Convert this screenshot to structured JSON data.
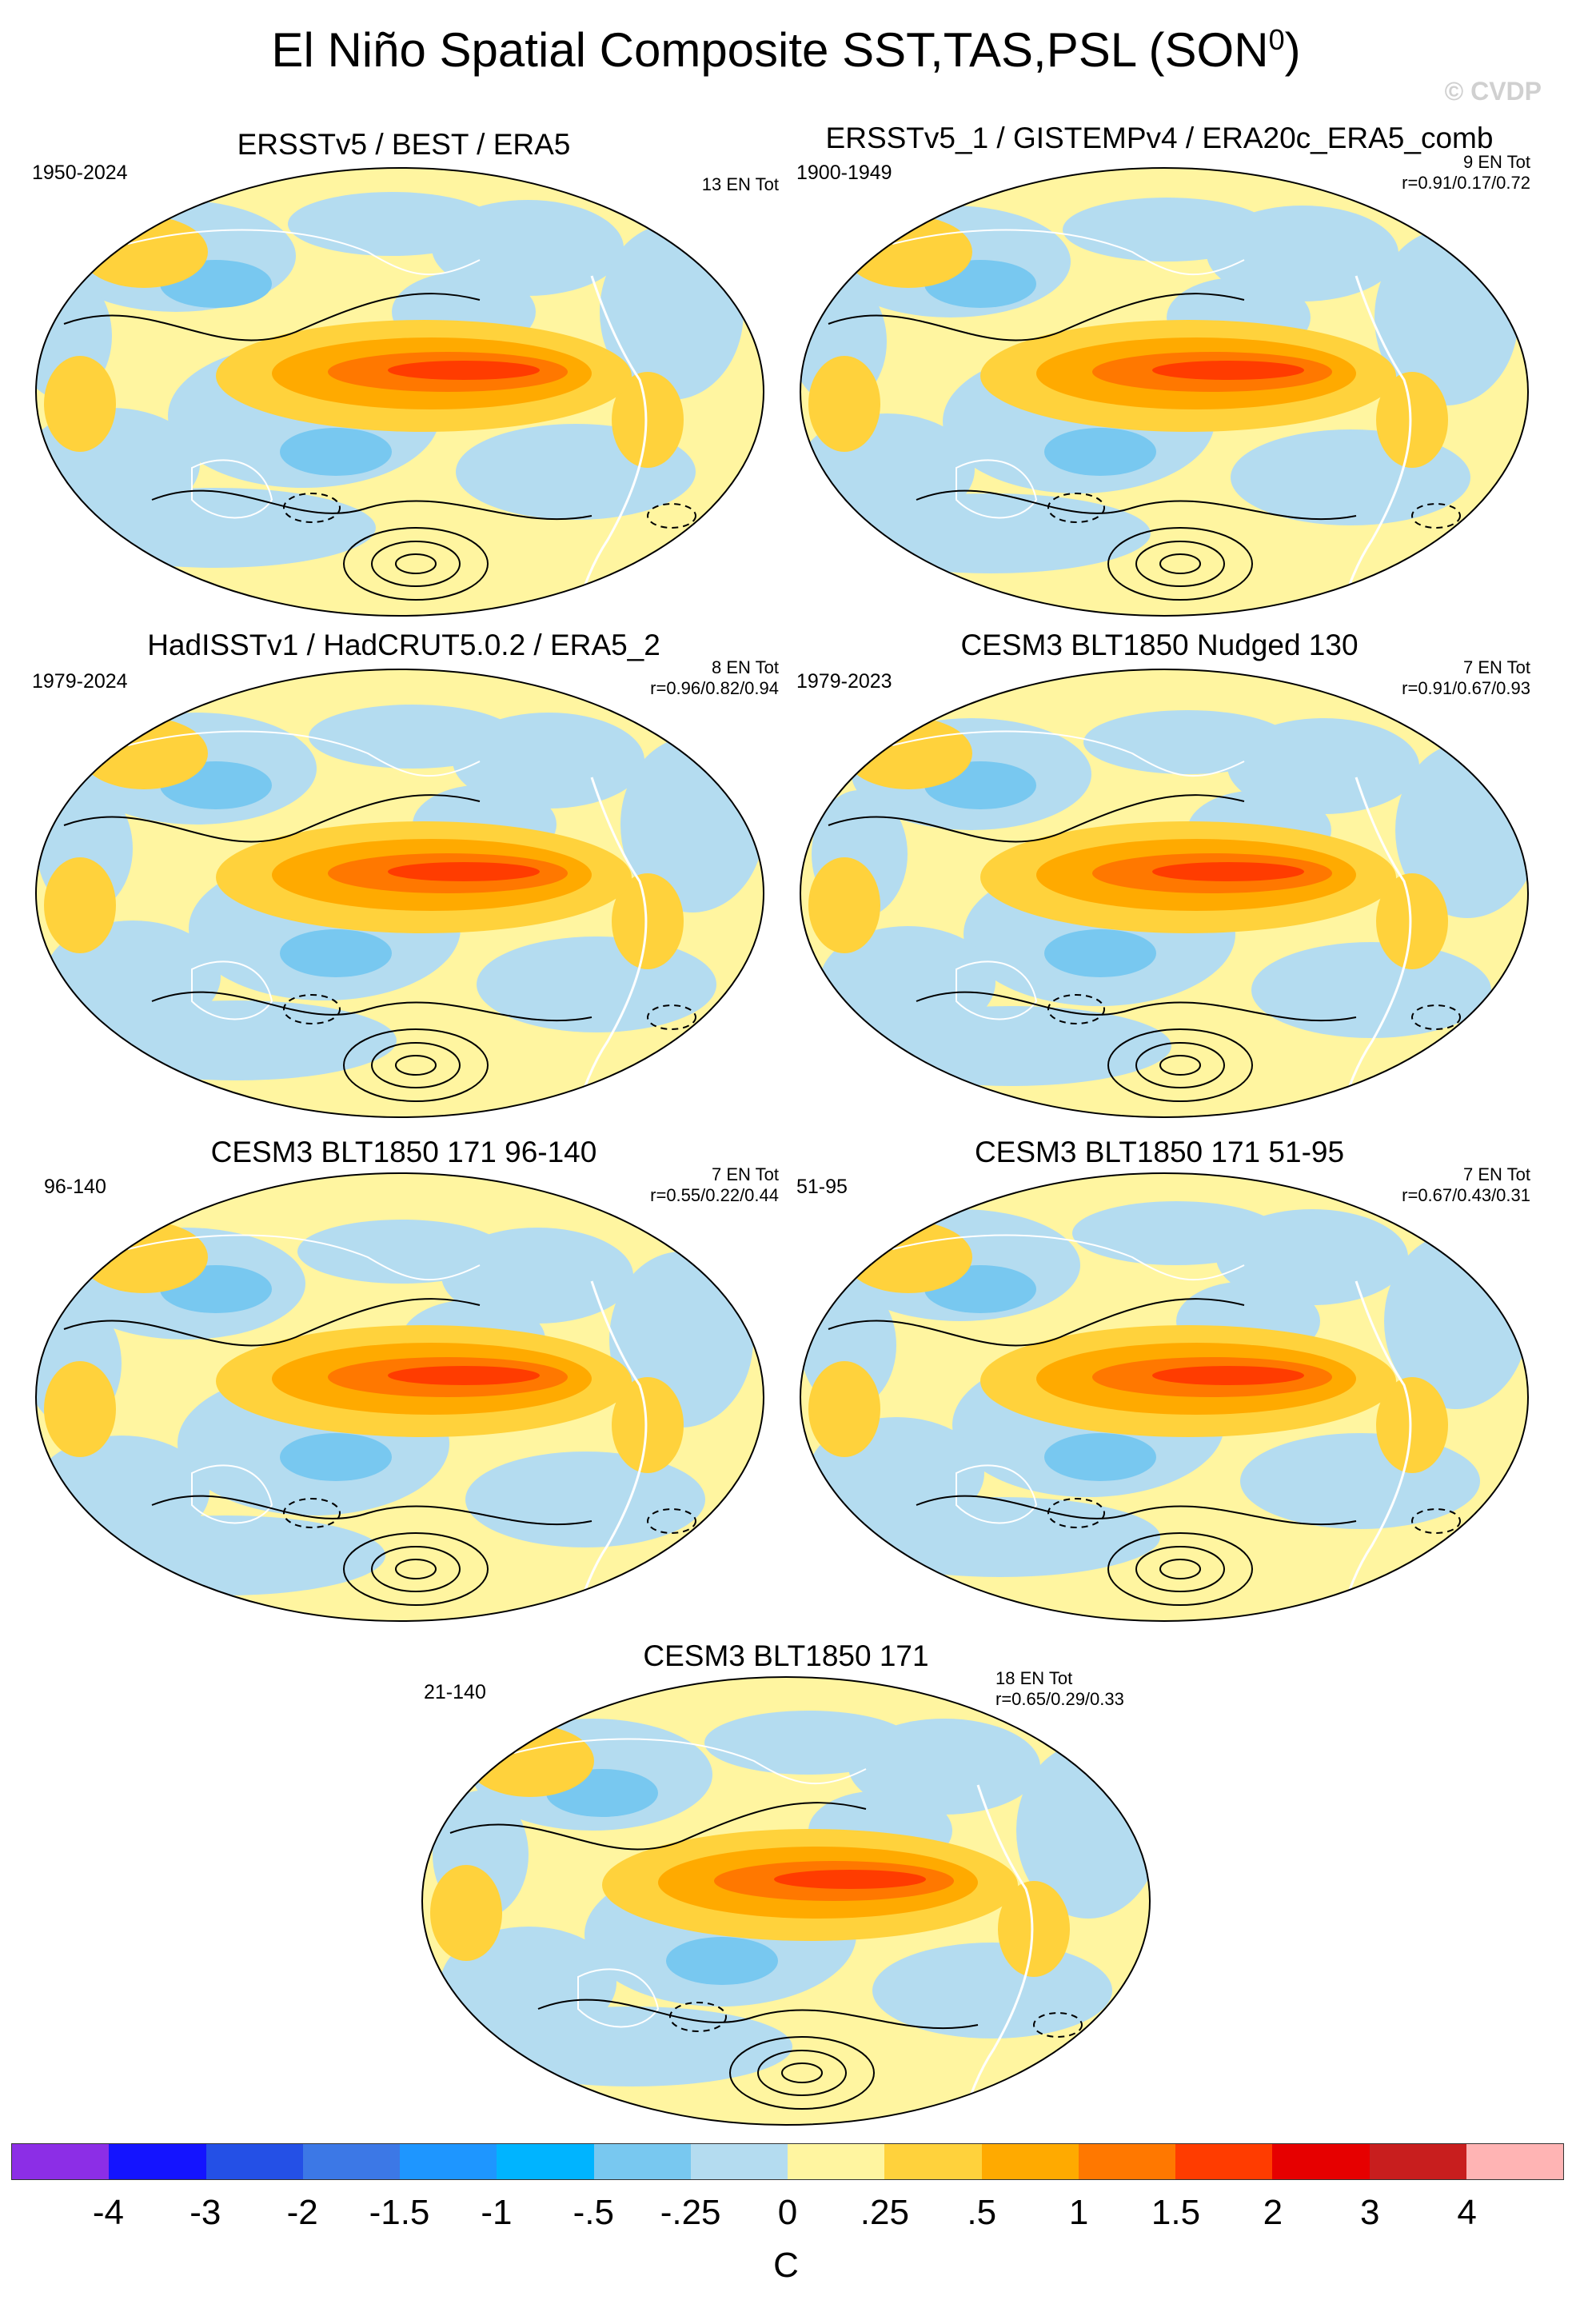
{
  "title": "El Niño Spatial Composite SST,TAS,PSL (SON",
  "title_superscript": "0",
  "title_close": ")",
  "watermark": "© CVDP",
  "panels": [
    {
      "title": "ERSSTv5 / BEST / ERA5",
      "period": "1950-2024",
      "stats_line1": "13 EN Tot",
      "stats_line2": ""
    },
    {
      "title": "ERSSTv5_1 / GISTEMPv4 / ERA20c_ERA5_comb",
      "period": "1900-1949",
      "stats_line1": "9 EN Tot",
      "stats_line2": "r=0.91/0.17/0.72"
    },
    {
      "title": "HadISSTv1 / HadCRUT5.0.2 / ERA5_2",
      "period": "1979-2024",
      "stats_line1": "8 EN Tot",
      "stats_line2": "r=0.96/0.82/0.94"
    },
    {
      "title": "CESM3 BLT1850 Nudged 130",
      "period": "1979-2023",
      "stats_line1": "7 EN Tot",
      "stats_line2": "r=0.91/0.67/0.93"
    },
    {
      "title": "CESM3 BLT1850 171 96-140",
      "period": "96-140",
      "stats_line1": "7 EN Tot",
      "stats_line2": "r=0.55/0.22/0.44"
    },
    {
      "title": "CESM3 BLT1850 171 51-95",
      "period": "51-95",
      "stats_line1": "7 EN Tot",
      "stats_line2": "r=0.67/0.43/0.31"
    },
    {
      "title": "CESM3 BLT1850 171",
      "period": "21-140",
      "stats_line1": "18 EN Tot",
      "stats_line2": "r=0.65/0.29/0.33"
    }
  ],
  "colorbar": {
    "colors": [
      "#8c2ee6",
      "#1414ff",
      "#2450e6",
      "#3c78e6",
      "#1e96ff",
      "#00b4ff",
      "#78c8f0",
      "#b4dcf0",
      "#fff5a0",
      "#ffd23c",
      "#ffaa00",
      "#ff7800",
      "#ff3c00",
      "#e60000",
      "#c81e1e",
      "#ffb4b4"
    ],
    "labels": [
      "-4",
      "-3",
      "-2",
      "-1.5",
      "-1",
      "-.5",
      "-.25",
      "0",
      ".25",
      ".5",
      "1",
      "1.5",
      "2",
      "3",
      "4"
    ],
    "units": "C"
  }
}
